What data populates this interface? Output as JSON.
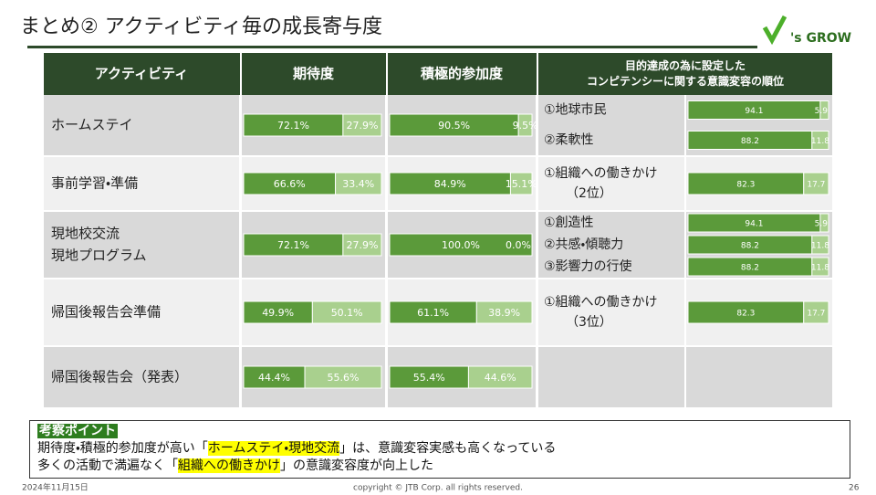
{
  "header": {
    "title": "まとめ②  アクティビティ毎の成長寄与度",
    "logo": "'s GROW"
  },
  "table": {
    "headers": [
      [
        "アクティビティ"
      ],
      [
        "期待度"
      ],
      [
        "積極的参加度"
      ],
      [
        "目的達成の為に設定した",
        "コンピテンシーに関する意識変容の順位"
      ]
    ],
    "rows": [
      {
        "activity": [
          "ホームステイ"
        ],
        "expectation": {
          "values": [
            72.1,
            27.9
          ],
          "value_labels": [
            "72.1%",
            "27.9%"
          ]
        },
        "participation": {
          "values": [
            90.5,
            9.5
          ],
          "value_labels": [
            "90.5%",
            "9.5%"
          ]
        },
        "competencies": [
          {
            "label": [
              "①地球市民"
            ],
            "values": [
              94.1,
              5.9
            ]
          },
          {
            "label": [
              "②柔軟性"
            ],
            "values": [
              88.2,
              11.8
            ]
          }
        ]
      },
      {
        "activity": [
          "事前学習・準備"
        ],
        "expectation": {
          "values": [
            66.6,
            33.4
          ],
          "value_labels": [
            "66.6%",
            "33.4%"
          ]
        },
        "participation": {
          "values": [
            84.9,
            15.1
          ],
          "value_labels": [
            "84.9%",
            "15.1%"
          ]
        },
        "competencies": [
          {
            "label": [
              "①組織への働きかけ",
              "（2位）"
            ],
            "values": [
              82.3,
              17.7
            ]
          }
        ]
      },
      {
        "activity": [
          "現地校交流",
          "現地プログラム"
        ],
        "expectation": {
          "values": [
            72.1,
            27.9
          ],
          "value_labels": [
            "72.1%",
            "27.9%"
          ]
        },
        "participation": {
          "values": [
            100.0,
            0.0
          ],
          "value_labels": [
            "100.0%",
            "0.0%"
          ]
        },
        "competencies": [
          {
            "label": [
              "①創造性"
            ],
            "values": [
              94.1,
              5.9
            ]
          },
          {
            "label": [
              "②共感・傾聴力"
            ],
            "values": [
              88.2,
              11.8
            ]
          },
          {
            "label": [
              "③影響力の行使"
            ],
            "values": [
              88.2,
              11.8
            ]
          }
        ]
      },
      {
        "activity": [
          "帰国後報告会準備"
        ],
        "expectation": {
          "values": [
            49.9,
            50.1
          ],
          "value_labels": [
            "49.9%",
            "50.1%"
          ]
        },
        "participation": {
          "values": [
            61.1,
            38.9
          ],
          "value_labels": [
            "61.1%",
            "38.9%"
          ]
        },
        "competencies": [
          {
            "label": [
              "①組織への働きかけ",
              "（3位）"
            ],
            "values": [
              82.3,
              17.7
            ]
          }
        ]
      },
      {
        "activity": [
          "帰国後報告会（発表）"
        ],
        "expectation": {
          "values": [
            44.4,
            55.6
          ],
          "value_labels": [
            "44.4%",
            "55.6%"
          ]
        },
        "participation": {
          "values": [
            55.4,
            44.6
          ],
          "value_labels": [
            "55.4%",
            "44.6%"
          ]
        },
        "competencies": []
      }
    ]
  },
  "note": {
    "heading": "考察ポイント",
    "lines": [
      [
        "期待度・積極的参加度が高い「",
        "ホームステイ・現地交流",
        "」は、意識変容実感も高くなっている"
      ],
      [
        "多くの活動で満遍なく「",
        "組織への働きかけ",
        "」の意識変容度が向上した"
      ]
    ]
  },
  "footer": {
    "date": "2024年11月15日",
    "copyright": "copyright © JTB Corp. all rights reserved.",
    "page": "26"
  }
}
